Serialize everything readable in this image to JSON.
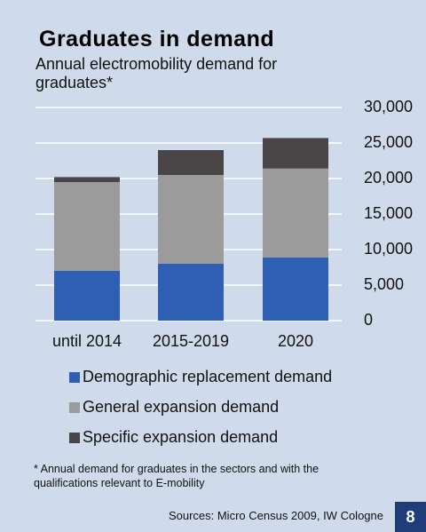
{
  "chart_data": {
    "type": "stacked_bar",
    "title": "Graduates in demand",
    "subtitle": "Annual electromobility demand for graduates*",
    "categories": [
      "until 2014",
      "2015-2019",
      "2020"
    ],
    "series": [
      {
        "name": "Demographic replacement demand",
        "color": "#2f5fb3",
        "values": [
          7000,
          8000,
          8900
        ]
      },
      {
        "name": "General expansion demand",
        "color": "#9b9b9b",
        "values": [
          12500,
          12500,
          12500
        ]
      },
      {
        "name": "Specific expansion demand",
        "color": "#4a4647",
        "values": [
          700,
          3500,
          4300
        ]
      }
    ],
    "ylim": [
      0,
      30000
    ],
    "yticks": [
      0,
      {
        "value": 5000,
        "label": "5,000"
      },
      {
        "value": 10000,
        "label": "10,000"
      },
      {
        "value": 15000,
        "label": "15,000"
      },
      {
        "value": 20000,
        "label": "20,000"
      },
      {
        "value": 25000,
        "label": "25,000"
      },
      {
        "value": 30000,
        "label": "30,000"
      }
    ],
    "grid": true,
    "footnote": "* Annual demand for graduates in the sectors and with the qualifications relevant to E-mobility",
    "source": "Sources: Micro Census 2009, IW Cologne",
    "page_number": "8"
  }
}
